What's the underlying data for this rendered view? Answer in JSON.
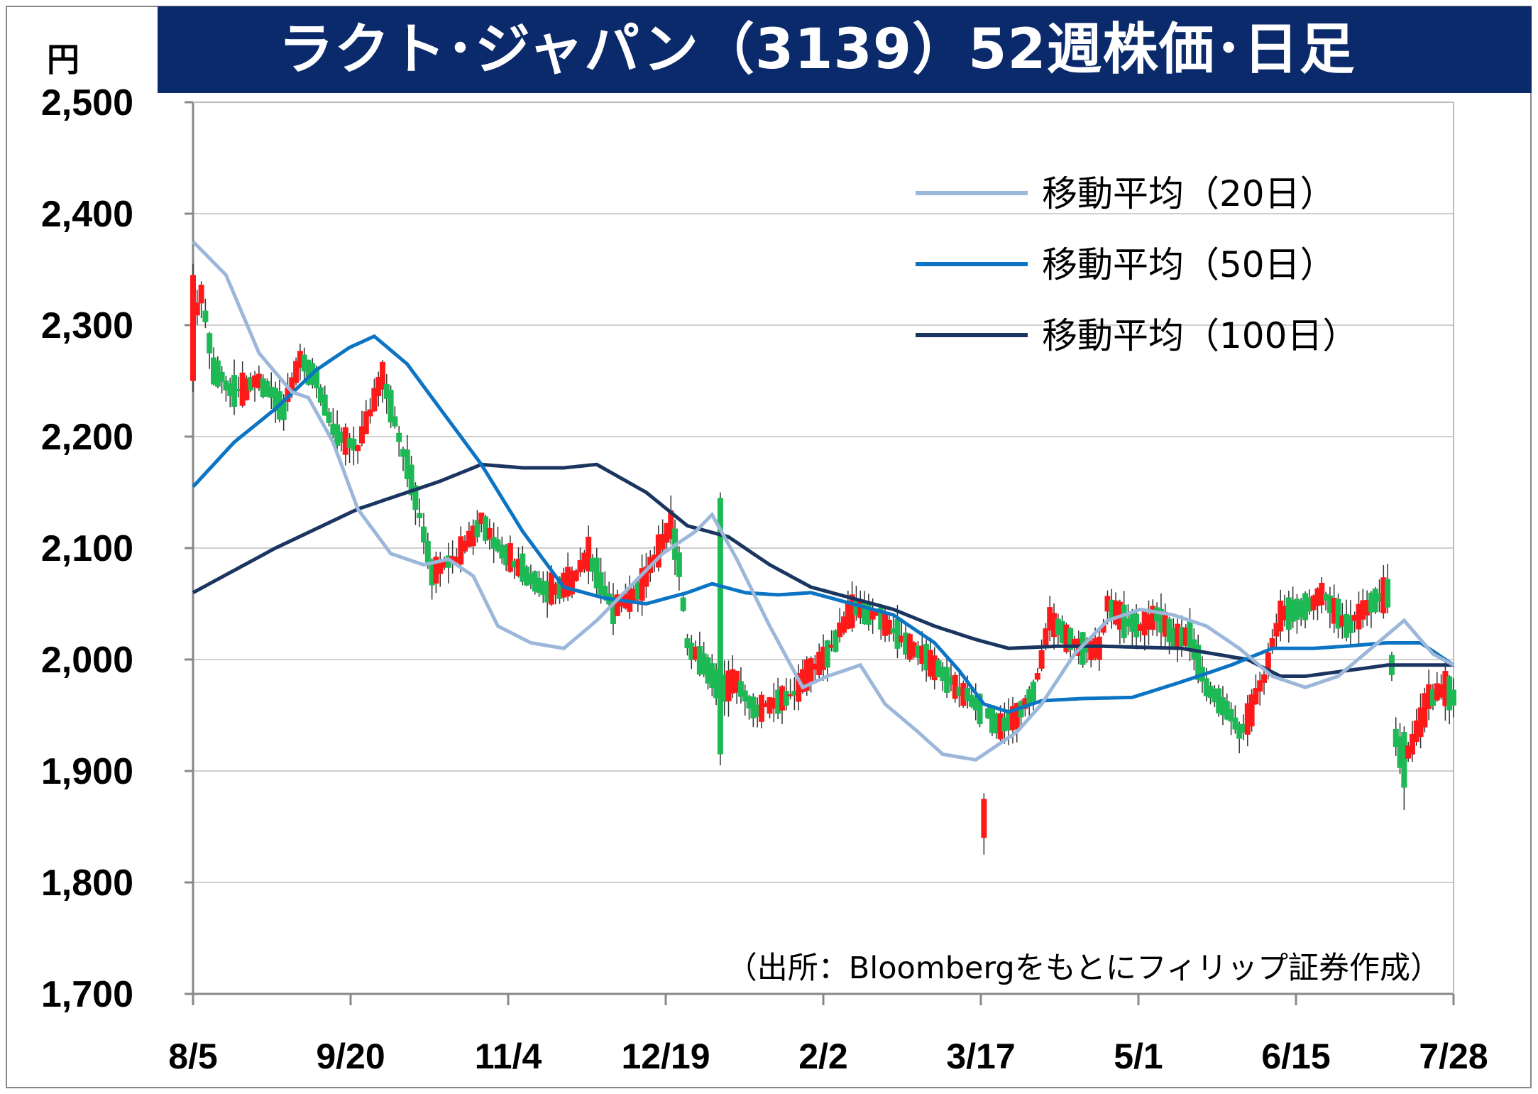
{
  "title": "ラクト･ジャパン（3139）52週株価･日足",
  "unit": "円",
  "source": "（出所：Bloombergをもとにフィリップ証券作成）",
  "colors": {
    "up": "#ff1a1a",
    "down": "#1db954",
    "ma20": "#9bb7da",
    "ma50": "#0b74c4",
    "ma100": "#1a3560",
    "title_bg": "#0a2a6b",
    "grid": "#d0d0d0"
  },
  "chart_data": {
    "type": "candlestick",
    "ylim": [
      1700,
      2500
    ],
    "y_ticks": [
      "1,700",
      "1,800",
      "1,900",
      "2,000",
      "2,100",
      "2,200",
      "2,300",
      "2,400",
      "2,500"
    ],
    "x_ticks": [
      "8/5",
      "9/20",
      "11/4",
      "12/19",
      "2/2",
      "3/17",
      "5/1",
      "6/15",
      "7/28"
    ],
    "legend": [
      {
        "name": "移動平均（20日）",
        "color_key": "ma20"
      },
      {
        "name": "移動平均（50日）",
        "color_key": "ma50"
      },
      {
        "name": "移動平均（100日）",
        "color_key": "ma100"
      }
    ],
    "ma20_anchors": [
      [
        0,
        2375
      ],
      [
        8,
        2345
      ],
      [
        16,
        2275
      ],
      [
        24,
        2240
      ],
      [
        28,
        2235
      ],
      [
        34,
        2195
      ],
      [
        40,
        2135
      ],
      [
        48,
        2095
      ],
      [
        56,
        2085
      ],
      [
        62,
        2090
      ],
      [
        68,
        2075
      ],
      [
        74,
        2030
      ],
      [
        82,
        2015
      ],
      [
        90,
        2010
      ],
      [
        98,
        2035
      ],
      [
        106,
        2065
      ],
      [
        114,
        2095
      ],
      [
        122,
        2115
      ],
      [
        126,
        2130
      ],
      [
        132,
        2090
      ],
      [
        140,
        2030
      ],
      [
        148,
        1975
      ],
      [
        154,
        1985
      ],
      [
        162,
        1995
      ],
      [
        168,
        1960
      ],
      [
        176,
        1935
      ],
      [
        182,
        1915
      ],
      [
        190,
        1910
      ],
      [
        200,
        1935
      ],
      [
        206,
        1960
      ],
      [
        214,
        2005
      ],
      [
        222,
        2035
      ],
      [
        230,
        2045
      ],
      [
        238,
        2040
      ],
      [
        246,
        2030
      ],
      [
        254,
        2010
      ],
      [
        262,
        1985
      ],
      [
        270,
        1975
      ],
      [
        278,
        1985
      ],
      [
        286,
        2010
      ],
      [
        294,
        2035
      ],
      [
        301,
        2005
      ],
      [
        306,
        1995
      ]
    ],
    "ma50_anchors": [
      [
        0,
        2155
      ],
      [
        10,
        2195
      ],
      [
        20,
        2225
      ],
      [
        30,
        2260
      ],
      [
        38,
        2280
      ],
      [
        44,
        2290
      ],
      [
        52,
        2265
      ],
      [
        60,
        2225
      ],
      [
        70,
        2175
      ],
      [
        80,
        2115
      ],
      [
        90,
        2065
      ],
      [
        100,
        2055
      ],
      [
        110,
        2050
      ],
      [
        120,
        2060
      ],
      [
        126,
        2068
      ],
      [
        134,
        2060
      ],
      [
        142,
        2058
      ],
      [
        150,
        2060
      ],
      [
        160,
        2050
      ],
      [
        170,
        2040
      ],
      [
        180,
        2015
      ],
      [
        186,
        1990
      ],
      [
        192,
        1960
      ],
      [
        198,
        1953
      ],
      [
        206,
        1963
      ],
      [
        216,
        1965
      ],
      [
        228,
        1966
      ],
      [
        240,
        1980
      ],
      [
        252,
        1995
      ],
      [
        262,
        2010
      ],
      [
        272,
        2010
      ],
      [
        280,
        2012
      ],
      [
        290,
        2015
      ],
      [
        298,
        2015
      ],
      [
        306,
        1995
      ]
    ],
    "ma100_anchors": [
      [
        0,
        2060
      ],
      [
        20,
        2100
      ],
      [
        40,
        2135
      ],
      [
        60,
        2160
      ],
      [
        70,
        2175
      ],
      [
        80,
        2172
      ],
      [
        90,
        2172
      ],
      [
        98,
        2175
      ],
      [
        110,
        2150
      ],
      [
        120,
        2120
      ],
      [
        130,
        2110
      ],
      [
        140,
        2085
      ],
      [
        150,
        2065
      ],
      [
        160,
        2055
      ],
      [
        170,
        2045
      ],
      [
        180,
        2030
      ],
      [
        190,
        2018
      ],
      [
        198,
        2010
      ],
      [
        210,
        2012
      ],
      [
        220,
        2012
      ],
      [
        240,
        2010
      ],
      [
        256,
        2000
      ],
      [
        264,
        1985
      ],
      [
        270,
        1985
      ],
      [
        280,
        1990
      ],
      [
        290,
        1995
      ],
      [
        298,
        1995
      ],
      [
        306,
        1995
      ]
    ],
    "candle_anchors": [
      [
        0,
        2300
      ],
      [
        2,
        2330
      ],
      [
        5,
        2260
      ],
      [
        10,
        2240
      ],
      [
        16,
        2250
      ],
      [
        22,
        2225
      ],
      [
        26,
        2270
      ],
      [
        30,
        2250
      ],
      [
        34,
        2205
      ],
      [
        40,
        2190
      ],
      [
        46,
        2255
      ],
      [
        50,
        2200
      ],
      [
        54,
        2145
      ],
      [
        58,
        2080
      ],
      [
        64,
        2090
      ],
      [
        70,
        2125
      ],
      [
        74,
        2100
      ],
      [
        80,
        2080
      ],
      [
        86,
        2060
      ],
      [
        92,
        2070
      ],
      [
        96,
        2095
      ],
      [
        102,
        2045
      ],
      [
        108,
        2060
      ],
      [
        112,
        2090
      ],
      [
        116,
        2120
      ],
      [
        118,
        2085
      ],
      [
        120,
        2015
      ],
      [
        124,
        1995
      ],
      [
        128,
        1975
      ],
      [
        132,
        1980
      ],
      [
        136,
        1955
      ],
      [
        140,
        1960
      ],
      [
        146,
        1970
      ],
      [
        150,
        1990
      ],
      [
        154,
        2005
      ],
      [
        160,
        2045
      ],
      [
        166,
        2040
      ],
      [
        172,
        2020
      ],
      [
        178,
        2000
      ],
      [
        184,
        1980
      ],
      [
        190,
        1960
      ],
      [
        196,
        1940
      ],
      [
        200,
        1950
      ],
      [
        204,
        1970
      ],
      [
        208,
        2035
      ],
      [
        212,
        2020
      ],
      [
        216,
        2010
      ],
      [
        220,
        2010
      ],
      [
        222,
        2050
      ],
      [
        226,
        2035
      ],
      [
        230,
        2030
      ],
      [
        234,
        2040
      ],
      [
        238,
        2020
      ],
      [
        242,
        2020
      ],
      [
        246,
        1975
      ],
      [
        250,
        1960
      ],
      [
        254,
        1935
      ],
      [
        256,
        1945
      ],
      [
        260,
        1985
      ],
      [
        264,
        2040
      ],
      [
        270,
        2045
      ],
      [
        274,
        2060
      ],
      [
        280,
        2030
      ],
      [
        286,
        2050
      ],
      [
        290,
        2060
      ],
      [
        292,
        1930
      ],
      [
        294,
        1905
      ],
      [
        296,
        1925
      ],
      [
        300,
        1965
      ],
      [
        304,
        1975
      ],
      [
        306,
        1965
      ]
    ],
    "n_days": 307,
    "notable_candles": [
      {
        "day": 0,
        "open": 2250,
        "high": 2355,
        "low": 2240,
        "close": 2345
      },
      {
        "day": 128,
        "open": 2145,
        "high": 2150,
        "low": 1905,
        "close": 1915
      },
      {
        "day": 192,
        "open": 1840,
        "high": 1880,
        "low": 1825,
        "close": 1875
      },
      {
        "day": 294,
        "open": 1935,
        "high": 1940,
        "low": 1865,
        "close": 1885
      }
    ]
  }
}
